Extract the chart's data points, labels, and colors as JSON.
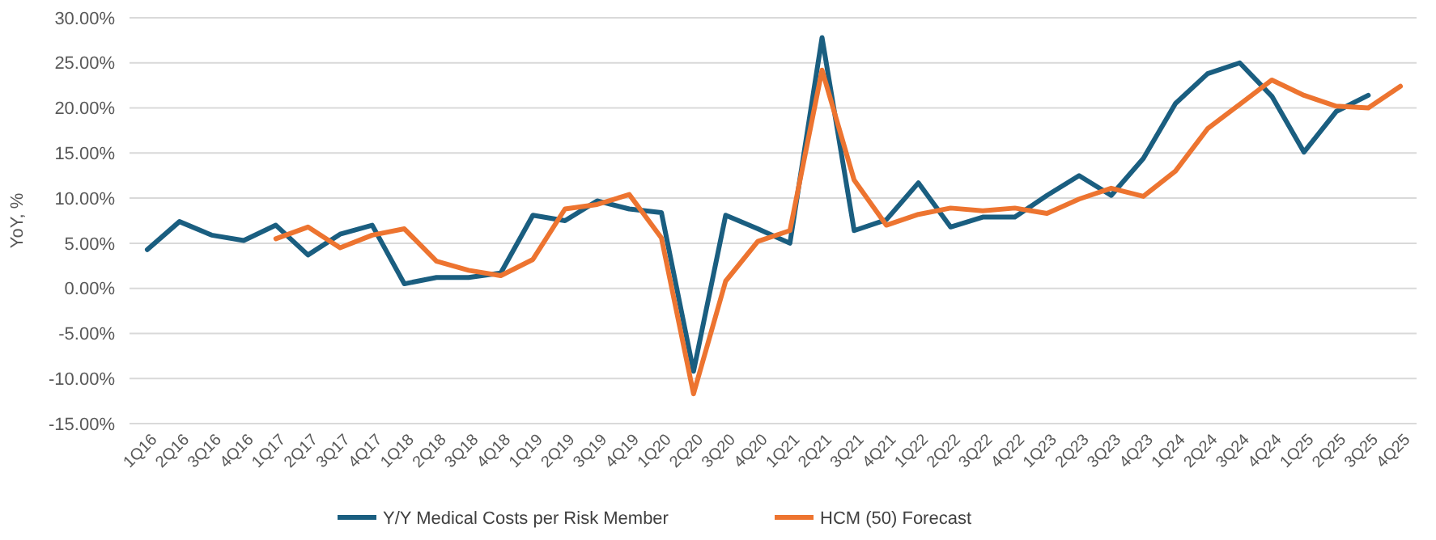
{
  "chart_data": {
    "type": "line",
    "ylabel": "YoY, %",
    "categories": [
      "1Q16",
      "2Q16",
      "3Q16",
      "4Q16",
      "1Q17",
      "2Q17",
      "3Q17",
      "4Q17",
      "1Q18",
      "2Q18",
      "3Q18",
      "4Q18",
      "1Q19",
      "2Q19",
      "3Q19",
      "4Q19",
      "1Q20",
      "2Q20",
      "3Q20",
      "4Q20",
      "1Q21",
      "2Q21",
      "3Q21",
      "4Q21",
      "1Q22",
      "2Q22",
      "3Q22",
      "4Q22",
      "1Q23",
      "2Q23",
      "3Q23",
      "4Q23",
      "1Q24",
      "2Q24",
      "3Q24",
      "4Q24",
      "1Q25",
      "2Q25",
      "3Q25",
      "4Q25"
    ],
    "series": [
      {
        "name": "Y/Y Medical Costs per Risk Member",
        "color": "#1a5e80",
        "values": [
          4.3,
          7.4,
          5.9,
          5.3,
          7.0,
          3.7,
          6.0,
          7.0,
          0.5,
          1.2,
          1.2,
          1.7,
          8.1,
          7.5,
          9.7,
          8.8,
          8.4,
          -9.2,
          8.1,
          6.6,
          5.0,
          27.8,
          6.4,
          7.6,
          11.7,
          6.8,
          7.9,
          7.9,
          10.3,
          12.5,
          10.3,
          14.4,
          20.5,
          23.8,
          25.0,
          21.3,
          15.1,
          19.6,
          21.4,
          null
        ]
      },
      {
        "name": "HCM (50) Forecast",
        "color": "#ed7430",
        "values": [
          null,
          null,
          null,
          null,
          5.5,
          6.8,
          4.5,
          5.9,
          6.6,
          3.0,
          2.0,
          1.4,
          3.2,
          8.8,
          9.3,
          10.4,
          5.6,
          -11.7,
          0.8,
          5.2,
          6.4,
          24.2,
          12.0,
          7.0,
          8.2,
          8.9,
          8.6,
          8.9,
          8.3,
          9.9,
          11.1,
          10.2,
          13.0,
          17.7,
          20.4,
          23.1,
          21.4,
          20.2,
          20.0,
          22.4
        ]
      }
    ],
    "ylim": [
      -15,
      30
    ],
    "yticks": [
      {
        "value": -15,
        "label": "-15.00%"
      },
      {
        "value": -10,
        "label": "-10.00%"
      },
      {
        "value": -5,
        "label": "-5.00%"
      },
      {
        "value": 0,
        "label": "0.00%"
      },
      {
        "value": 5,
        "label": "5.00%"
      },
      {
        "value": 10,
        "label": "10.00%"
      },
      {
        "value": 15,
        "label": "15.00%"
      },
      {
        "value": 20,
        "label": "20.00%"
      },
      {
        "value": 25,
        "label": "25.00%"
      },
      {
        "value": 30,
        "label": "30.00%"
      }
    ],
    "grid": "y",
    "legend": "bottom",
    "marker": "none",
    "line_style": "solid"
  }
}
